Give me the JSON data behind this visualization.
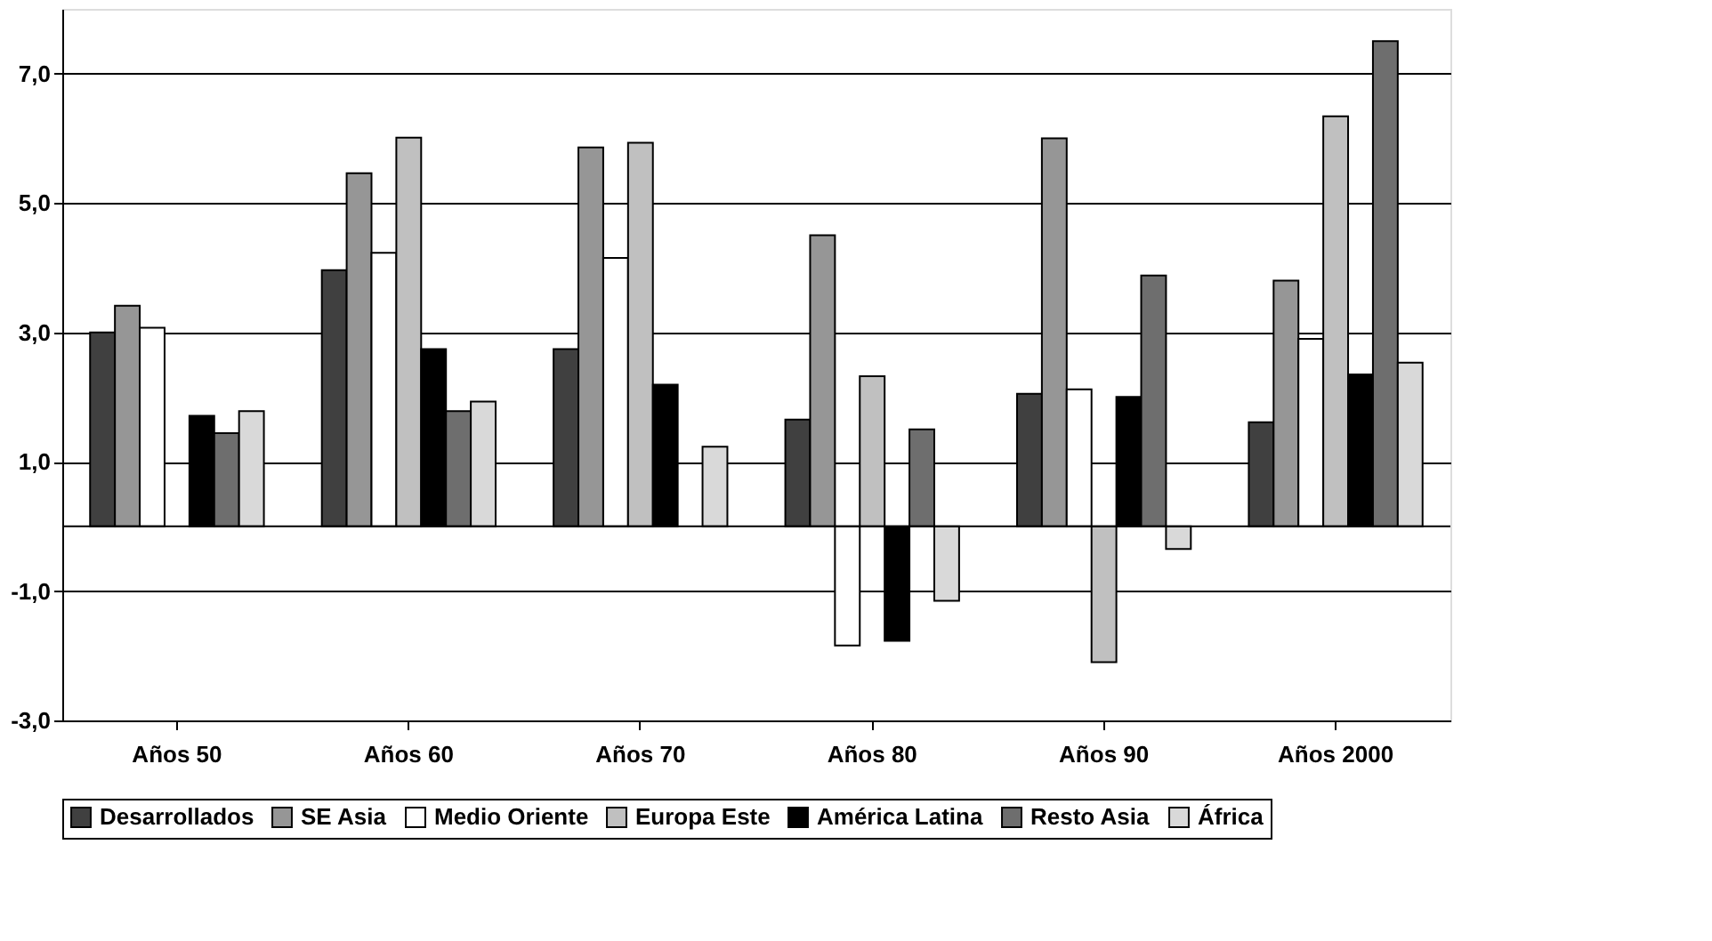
{
  "chart_data": {
    "type": "bar",
    "categories": [
      "Años 50",
      "Años 60",
      "Años 70",
      "Años 80",
      "Años 90",
      "Años 2000"
    ],
    "series": [
      {
        "name": "Desarrollados",
        "color": "#404040",
        "values": [
          3.0,
          3.96,
          2.74,
          1.65,
          2.05,
          1.61
        ]
      },
      {
        "name": "SE Asia",
        "color": "#969696",
        "values": [
          3.41,
          5.46,
          5.86,
          4.5,
          6.0,
          3.8
        ]
      },
      {
        "name": "Medio Oriente",
        "color": "#ffffff",
        "values": [
          3.07,
          4.23,
          4.15,
          -1.84,
          2.12,
          2.9
        ]
      },
      {
        "name": "Europa Este",
        "color": "#c0c0c0",
        "values": [
          null,
          6.01,
          5.93,
          2.32,
          -2.1,
          6.34
        ]
      },
      {
        "name": "América Latina",
        "color": "#000000",
        "values": [
          1.71,
          2.74,
          2.19,
          -1.77,
          2.0,
          2.35
        ]
      },
      {
        "name": "Resto Asia",
        "color": "#6e6e6e",
        "values": [
          1.44,
          1.78,
          null,
          1.5,
          3.88,
          7.5
        ]
      },
      {
        "name": "África",
        "color": "#d9d9d9",
        "values": [
          1.78,
          1.93,
          1.23,
          -1.15,
          -0.35,
          2.53
        ]
      }
    ],
    "ylim": [
      -3,
      8
    ],
    "yticks": [
      {
        "value": -3,
        "label": "-3,0"
      },
      {
        "value": -1,
        "label": "-1,0"
      },
      {
        "value": 1,
        "label": "1,0"
      },
      {
        "value": 3,
        "label": "3,0"
      },
      {
        "value": 5,
        "label": "5,0"
      },
      {
        "value": 7,
        "label": "7,0"
      }
    ],
    "ref_lines": [
      {
        "axis": "y",
        "value": 0
      }
    ],
    "grid": "y",
    "legend": "bottom"
  }
}
